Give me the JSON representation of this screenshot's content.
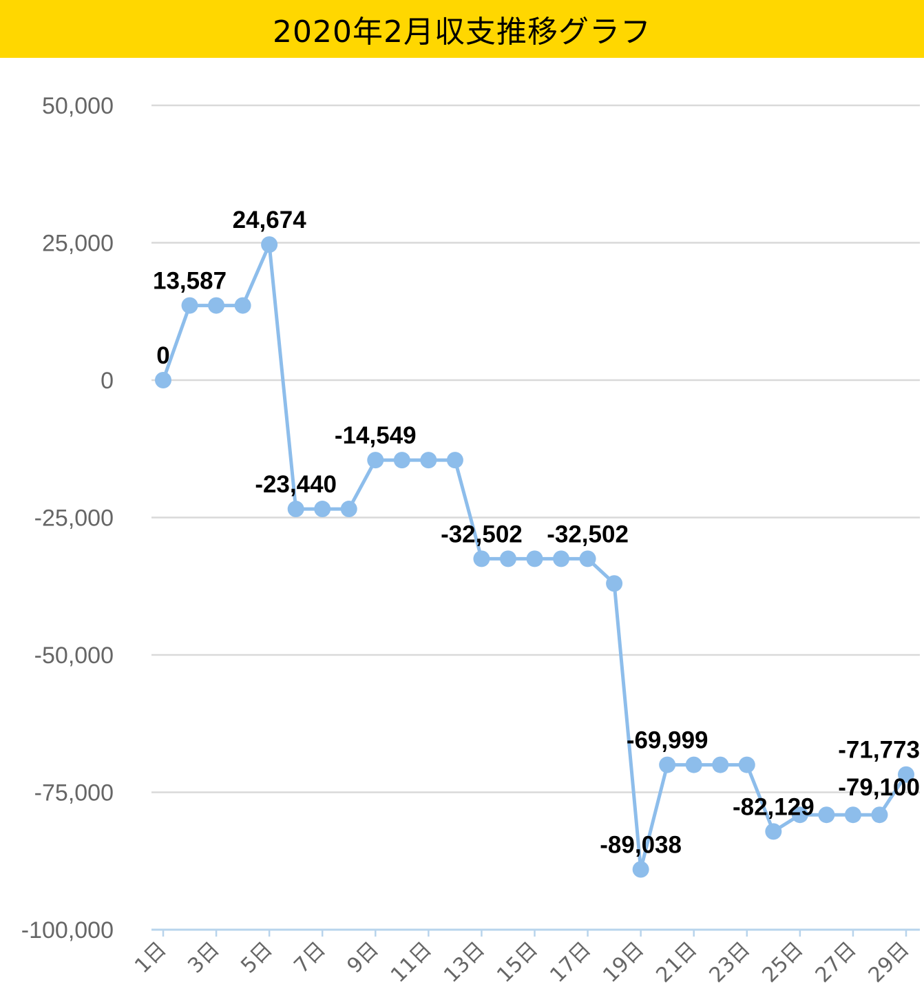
{
  "chart_data": {
    "type": "line",
    "title": "2020年2月収支推移グラフ",
    "xlabel": "",
    "ylabel": "",
    "ylim": [
      -100000,
      50000
    ],
    "yticks": [
      50000,
      25000,
      0,
      -25000,
      -50000,
      -75000,
      -100000
    ],
    "ytick_labels": [
      "50,000",
      "25,000",
      "0",
      "-25,000",
      "-50,000",
      "-75,000",
      "-100,000"
    ],
    "grid": true,
    "line_color": "#8DBDEB",
    "title_bar_color": "#FFD700",
    "categories": [
      "1日",
      "2日",
      "3日",
      "4日",
      "5日",
      "6日",
      "7日",
      "8日",
      "9日",
      "10日",
      "11日",
      "12日",
      "13日",
      "14日",
      "15日",
      "16日",
      "17日",
      "18日",
      "19日",
      "20日",
      "21日",
      "22日",
      "23日",
      "24日",
      "25日",
      "26日",
      "27日",
      "28日",
      "29日"
    ],
    "xtick_labels": [
      "1日",
      "3日",
      "5日",
      "7日",
      "9日",
      "11日",
      "13日",
      "15日",
      "17日",
      "19日",
      "21日",
      "23日",
      "25日",
      "27日",
      "29日"
    ],
    "series": [
      {
        "values": [
          0,
          13587,
          13587,
          13587,
          24674,
          -23440,
          -23440,
          -23440,
          -14549,
          -14549,
          -14549,
          -14549,
          -32502,
          -32502,
          -32502,
          -32502,
          -32502,
          -37000,
          -89038,
          -69999,
          -69999,
          -69999,
          -69999,
          -82129,
          -79100,
          -79100,
          -79100,
          -79100,
          -71773
        ]
      }
    ],
    "data_labels": [
      {
        "index": 0,
        "text": "0"
      },
      {
        "index": 1,
        "text": "13,587"
      },
      {
        "index": 4,
        "text": "24,674"
      },
      {
        "index": 5,
        "text": "-23,440"
      },
      {
        "index": 8,
        "text": "-14,549"
      },
      {
        "index": 12,
        "text": "-32,502"
      },
      {
        "index": 16,
        "text": "-32,502"
      },
      {
        "index": 18,
        "text": "-89,038"
      },
      {
        "index": 19,
        "text": "-69,999"
      },
      {
        "index": 23,
        "text": "-82,129"
      },
      {
        "index": 27,
        "text": "-79,100"
      },
      {
        "index": 28,
        "text": "-71,773"
      }
    ]
  }
}
